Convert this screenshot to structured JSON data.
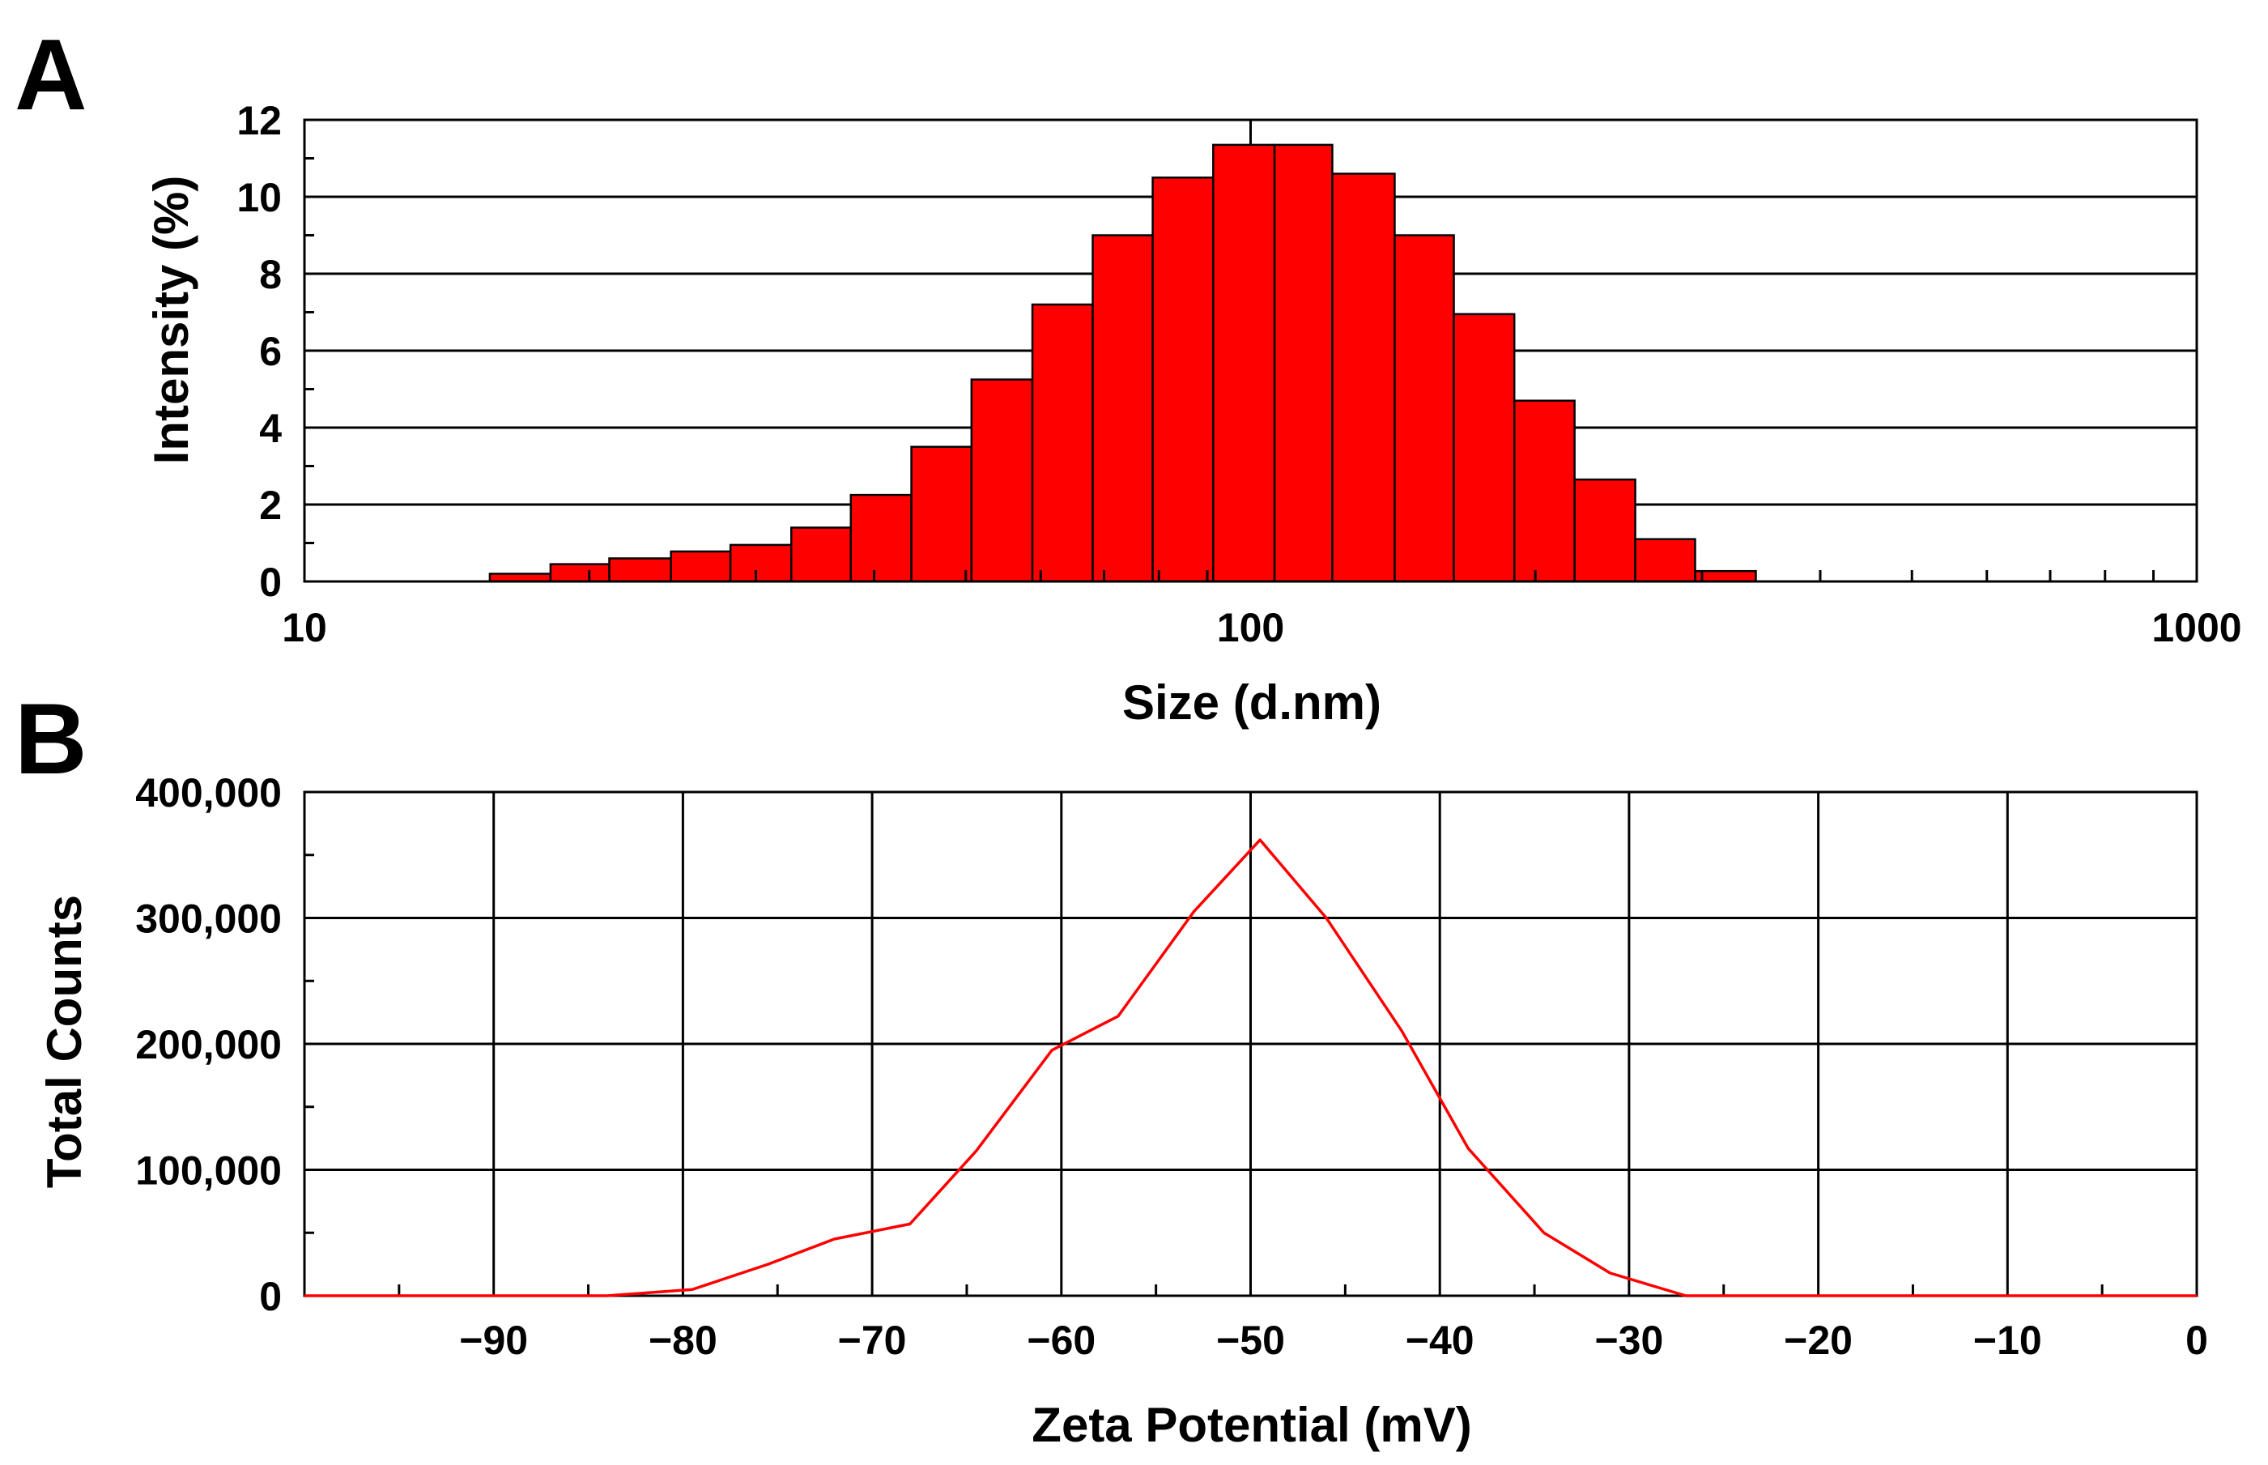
{
  "figure": {
    "panel_labels": [
      "A",
      "B"
    ]
  },
  "chart_data": [
    {
      "type": "bar",
      "panel": "A",
      "title": "",
      "xlabel": "Size (d.nm)",
      "ylabel": "Intensity (%)",
      "x_scale": "log",
      "xlim": [
        10,
        1000
      ],
      "ylim": [
        0,
        12
      ],
      "x_ticks": [
        10,
        100,
        1000
      ],
      "x_tick_labels": [
        "10",
        "100",
        "1000"
      ],
      "y_ticks": [
        0,
        2,
        4,
        6,
        8,
        10,
        12
      ],
      "y_tick_labels": [
        "0",
        "2",
        "4",
        "6",
        "8",
        "10",
        "12"
      ],
      "grid": "horizontal at major y ticks, vertical at x = 100",
      "legend": "none",
      "bar_color": "#ff0000",
      "bins": [
        {
          "x0": 15.7,
          "x1": 18.2,
          "value": 0.2
        },
        {
          "x0": 18.2,
          "x1": 21.0,
          "value": 0.45
        },
        {
          "x0": 21.0,
          "x1": 24.4,
          "value": 0.6
        },
        {
          "x0": 24.4,
          "x1": 28.2,
          "value": 0.78
        },
        {
          "x0": 28.2,
          "x1": 32.7,
          "value": 0.95
        },
        {
          "x0": 32.7,
          "x1": 37.8,
          "value": 1.4
        },
        {
          "x0": 37.8,
          "x1": 43.8,
          "value": 2.25
        },
        {
          "x0": 43.8,
          "x1": 50.7,
          "value": 3.5
        },
        {
          "x0": 50.7,
          "x1": 58.8,
          "value": 5.25
        },
        {
          "x0": 58.8,
          "x1": 68.1,
          "value": 7.2
        },
        {
          "x0": 68.1,
          "x1": 78.8,
          "value": 9.0
        },
        {
          "x0": 78.8,
          "x1": 91.3,
          "value": 10.5
        },
        {
          "x0": 91.3,
          "x1": 106.0,
          "value": 11.35
        },
        {
          "x0": 106.0,
          "x1": 122.0,
          "value": 11.35
        },
        {
          "x0": 122.0,
          "x1": 142.0,
          "value": 10.6
        },
        {
          "x0": 142.0,
          "x1": 164.0,
          "value": 9.0
        },
        {
          "x0": 164.0,
          "x1": 190.0,
          "value": 6.95
        },
        {
          "x0": 190.0,
          "x1": 220.0,
          "value": 4.7
        },
        {
          "x0": 220.0,
          "x1": 255.0,
          "value": 2.65
        },
        {
          "x0": 255.0,
          "x1": 295.0,
          "value": 1.1
        },
        {
          "x0": 295.0,
          "x1": 342.0,
          "value": 0.27
        }
      ]
    },
    {
      "type": "line",
      "panel": "B",
      "title": "",
      "xlabel": "Zeta Potential (mV)",
      "ylabel": "Total Counts",
      "xlim": [
        -100,
        0
      ],
      "ylim": [
        0,
        400000
      ],
      "x_ticks": [
        -90,
        -80,
        -70,
        -60,
        -50,
        -40,
        -30,
        -20,
        -10,
        0
      ],
      "x_tick_labels": [
        "−90",
        "−80",
        "−70",
        "−60",
        "−50",
        "−40",
        "−30",
        "−20",
        "−10",
        "0"
      ],
      "y_ticks": [
        0,
        100000,
        200000,
        300000,
        400000
      ],
      "y_tick_labels": [
        "0",
        "100,000",
        "200,000",
        "300,000",
        "400,000"
      ],
      "grid": "vertical at every x tick, horizontal at every y tick",
      "legend": "none",
      "line_color": "#ff0000",
      "series": [
        {
          "x": [
            -100,
            -84,
            -79.5,
            -75.5,
            -72,
            -68,
            -64.5,
            -60.5,
            -57,
            -53,
            -49.5,
            -46,
            -42,
            -38.5,
            -34.5,
            -31,
            -27,
            -20,
            -10,
            0
          ],
          "y": [
            0,
            0,
            5000,
            25000,
            45000,
            57000,
            115000,
            195000,
            222000,
            305000,
            362000,
            300000,
            210000,
            117000,
            50000,
            18000,
            0,
            0,
            0,
            0
          ]
        }
      ]
    }
  ]
}
